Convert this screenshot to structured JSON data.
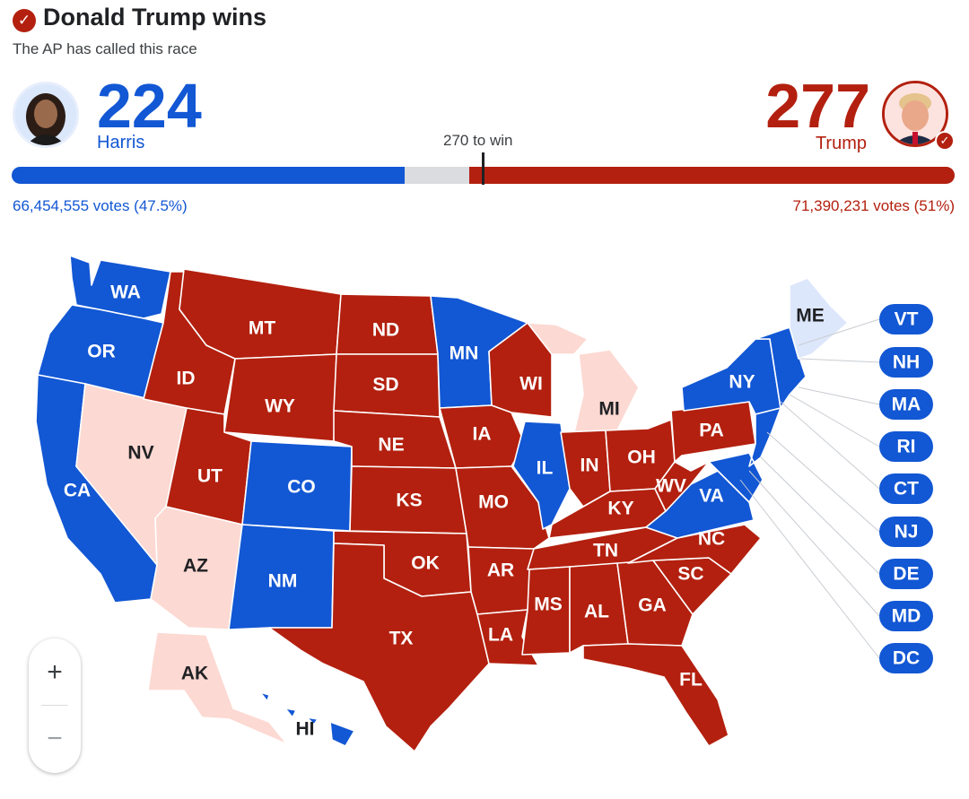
{
  "header": {
    "headline": "Donald Trump wins",
    "subhead": "The AP has called this race",
    "check_icon": "check-circle-icon"
  },
  "candidates": {
    "harris": {
      "name": "Harris",
      "electoral_votes": "224",
      "votes_text": "66,454,555 votes (47.5%)",
      "color": "#1257d4"
    },
    "trump": {
      "name": "Trump",
      "electoral_votes": "277",
      "votes_text": "71,390,231 votes (51%)",
      "color": "#b3200f"
    }
  },
  "bar": {
    "threshold_label": "270 to win",
    "total": 538,
    "harris": 224,
    "trump": 277,
    "threshold": 270
  },
  "colors": {
    "dem": "#1257d4",
    "rep": "#b3200f",
    "lean_rep": "#fcd9d2",
    "lean_dem": "#dde7fb",
    "uncalled": "#dadce0"
  },
  "states": {
    "WA": "WA",
    "OR": "OR",
    "CA": "CA",
    "ID": "ID",
    "NV": "NV",
    "AZ": "AZ",
    "UT": "UT",
    "MT": "MT",
    "WY": "WY",
    "CO": "CO",
    "NM": "NM",
    "ND": "ND",
    "SD": "SD",
    "NE": "NE",
    "KS": "KS",
    "OK": "OK",
    "TX": "TX",
    "MN": "MN",
    "IA": "IA",
    "MO": "MO",
    "AR": "AR",
    "LA": "LA",
    "WI": "WI",
    "IL": "IL",
    "MI": "MI",
    "IN": "IN",
    "OH": "OH",
    "KY": "KY",
    "TN": "TN",
    "MS": "MS",
    "AL": "AL",
    "GA": "GA",
    "FL": "FL",
    "SC": "SC",
    "NC": "NC",
    "VA": "VA",
    "WV": "WV",
    "PA": "PA",
    "NY": "NY",
    "ME": "ME",
    "AK": "AK",
    "HI": "HI"
  },
  "small_states": [
    "VT",
    "NH",
    "MA",
    "RI",
    "CT",
    "NJ",
    "DE",
    "MD",
    "DC"
  ],
  "zoom": {
    "in": "+",
    "out": "−"
  }
}
